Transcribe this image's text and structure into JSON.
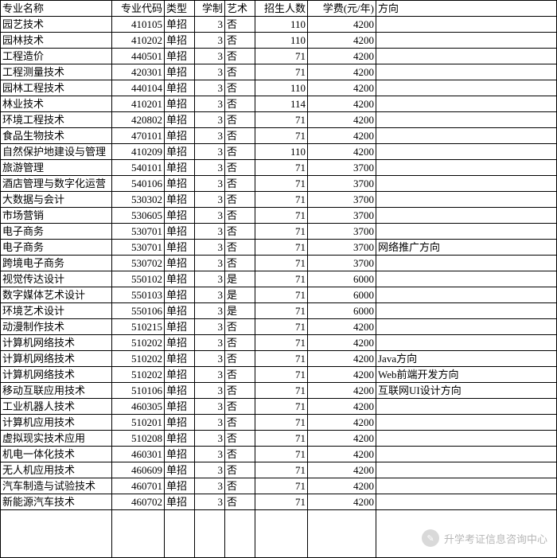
{
  "table": {
    "columns": [
      "专业名称",
      "专业代码",
      "类型",
      "学制",
      "艺术",
      "招生人数",
      "学费(元/年)",
      "方向"
    ],
    "col_classes": [
      "c-name",
      "c-code",
      "c-type",
      "c-dur",
      "c-art",
      "c-enr",
      "c-fee",
      "c-dir"
    ],
    "col_align": [
      "left",
      "right",
      "left",
      "right",
      "left",
      "right",
      "right",
      "left"
    ],
    "header_fontsize": 13,
    "cell_fontsize": 13,
    "border_color": "#000000",
    "background_color": "#ffffff",
    "text_color": "#000000",
    "rows": [
      [
        "园艺技术",
        "410105",
        "单招",
        "3",
        "否",
        "110",
        "4200",
        ""
      ],
      [
        "园林技术",
        "410202",
        "单招",
        "3",
        "否",
        "110",
        "4200",
        ""
      ],
      [
        "工程造价",
        "440501",
        "单招",
        "3",
        "否",
        "71",
        "4200",
        ""
      ],
      [
        "工程测量技术",
        "420301",
        "单招",
        "3",
        "否",
        "71",
        "4200",
        ""
      ],
      [
        "园林工程技术",
        "440104",
        "单招",
        "3",
        "否",
        "110",
        "4200",
        ""
      ],
      [
        "林业技术",
        "410201",
        "单招",
        "3",
        "否",
        "114",
        "4200",
        ""
      ],
      [
        "环境工程技术",
        "420802",
        "单招",
        "3",
        "否",
        "71",
        "4200",
        ""
      ],
      [
        "食品生物技术",
        "470101",
        "单招",
        "3",
        "否",
        "71",
        "4200",
        ""
      ],
      [
        "自然保护地建设与管理",
        "410209",
        "单招",
        "3",
        "否",
        "110",
        "4200",
        ""
      ],
      [
        "旅游管理",
        "540101",
        "单招",
        "3",
        "否",
        "71",
        "3700",
        ""
      ],
      [
        "酒店管理与数字化运营",
        "540106",
        "单招",
        "3",
        "否",
        "71",
        "3700",
        ""
      ],
      [
        "大数据与会计",
        "530302",
        "单招",
        "3",
        "否",
        "71",
        "3700",
        ""
      ],
      [
        "市场营销",
        "530605",
        "单招",
        "3",
        "否",
        "71",
        "3700",
        ""
      ],
      [
        "电子商务",
        "530701",
        "单招",
        "3",
        "否",
        "71",
        "3700",
        ""
      ],
      [
        "电子商务",
        "530701",
        "单招",
        "3",
        "否",
        "71",
        "3700",
        "网络推广方向"
      ],
      [
        "跨境电子商务",
        "530702",
        "单招",
        "3",
        "否",
        "71",
        "3700",
        ""
      ],
      [
        "视觉传达设计",
        "550102",
        "单招",
        "3",
        "是",
        "71",
        "6000",
        ""
      ],
      [
        "数字媒体艺术设计",
        "550103",
        "单招",
        "3",
        "是",
        "71",
        "6000",
        ""
      ],
      [
        "环境艺术设计",
        "550106",
        "单招",
        "3",
        "是",
        "71",
        "6000",
        ""
      ],
      [
        "动漫制作技术",
        "510215",
        "单招",
        "3",
        "否",
        "71",
        "4200",
        ""
      ],
      [
        "计算机网络技术",
        "510202",
        "单招",
        "3",
        "否",
        "71",
        "4200",
        ""
      ],
      [
        "计算机网络技术",
        "510202",
        "单招",
        "3",
        "否",
        "71",
        "4200",
        "Java方向"
      ],
      [
        "计算机网络技术",
        "510202",
        "单招",
        "3",
        "否",
        "71",
        "4200",
        "Web前端开发方向"
      ],
      [
        "移动互联应用技术",
        "510106",
        "单招",
        "3",
        "否",
        "71",
        "4200",
        "互联网UI设计方向"
      ],
      [
        "工业机器人技术",
        "460305",
        "单招",
        "3",
        "否",
        "71",
        "4200",
        ""
      ],
      [
        "计算机应用技术",
        "510201",
        "单招",
        "3",
        "否",
        "71",
        "4200",
        ""
      ],
      [
        "虚拟现实技术应用",
        "510208",
        "单招",
        "3",
        "否",
        "71",
        "4200",
        ""
      ],
      [
        "机电一体化技术",
        "460301",
        "单招",
        "3",
        "否",
        "71",
        "4200",
        ""
      ],
      [
        "无人机应用技术",
        "460609",
        "单招",
        "3",
        "否",
        "71",
        "4200",
        ""
      ],
      [
        "汽车制造与试验技术",
        "460701",
        "单招",
        "3",
        "否",
        "71",
        "4200",
        ""
      ],
      [
        "新能源汽车技术",
        "460702",
        "单招",
        "3",
        "否",
        "71",
        "4200",
        ""
      ]
    ],
    "blank_trailing_rows": 1
  },
  "watermark": {
    "text": "升学考证信息咨询中心",
    "icon_glyph": "✎",
    "color": "#b7b7b7",
    "icon_bg": "#d9d9d9"
  }
}
